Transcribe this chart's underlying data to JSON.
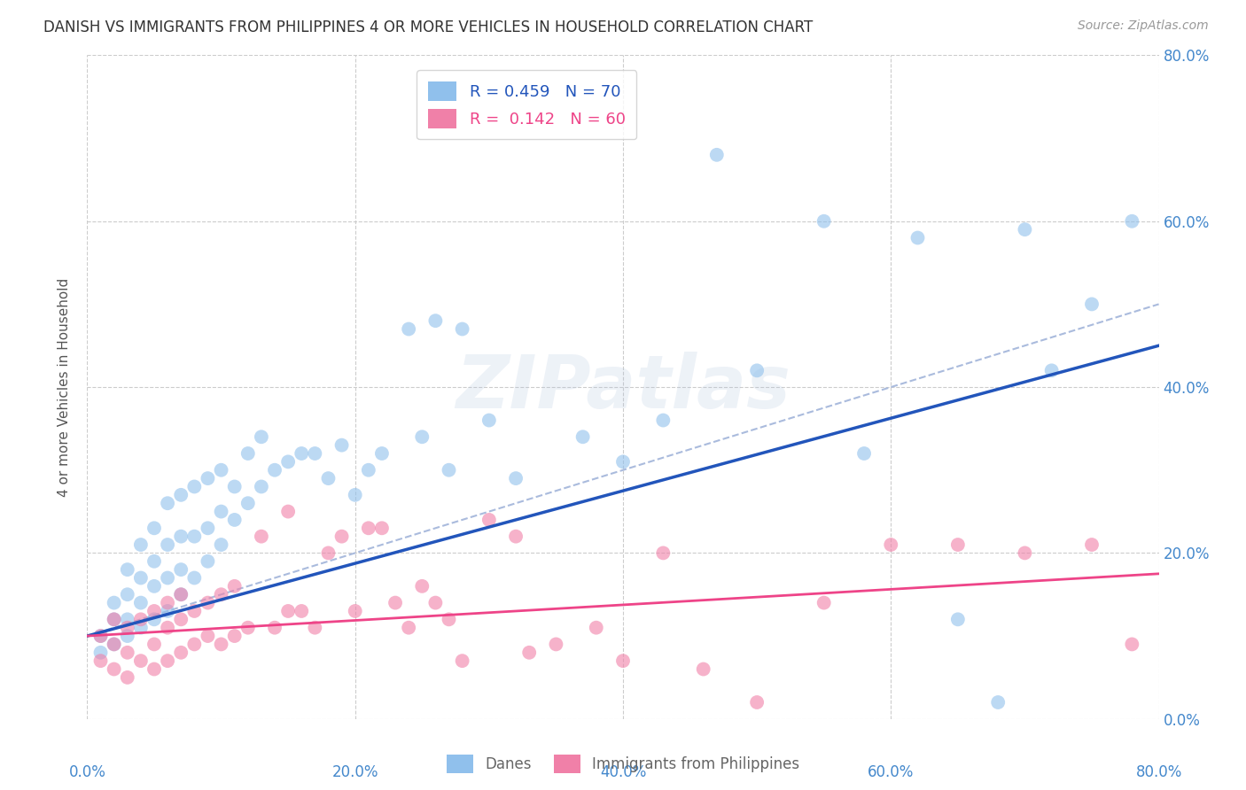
{
  "title": "DANISH VS IMMIGRANTS FROM PHILIPPINES 4 OR MORE VEHICLES IN HOUSEHOLD CORRELATION CHART",
  "source": "Source: ZipAtlas.com",
  "ylabel": "4 or more Vehicles in Household",
  "xlim": [
    0.0,
    0.8
  ],
  "ylim": [
    0.0,
    0.8
  ],
  "x_ticks": [
    0.0,
    0.2,
    0.4,
    0.6,
    0.8
  ],
  "y_ticks": [
    0.0,
    0.2,
    0.4,
    0.6,
    0.8
  ],
  "right_y_tick_labels": [
    "0.0%",
    "20.0%",
    "40.0%",
    "60.0%",
    "80.0%"
  ],
  "danes_color": "#90C0EC",
  "philippines_color": "#F080A8",
  "danes_line_color": "#2255BB",
  "philippines_line_color": "#EE4488",
  "dashed_line_color": "#AABBDD",
  "watermark": "ZIPatlas",
  "background_color": "#FFFFFF",
  "title_fontsize": 12,
  "tick_label_color": "#4488CC",
  "grid_color": "#CCCCCC",
  "danes_scatter_x": [
    0.01,
    0.01,
    0.02,
    0.02,
    0.02,
    0.03,
    0.03,
    0.03,
    0.03,
    0.04,
    0.04,
    0.04,
    0.04,
    0.05,
    0.05,
    0.05,
    0.05,
    0.06,
    0.06,
    0.06,
    0.06,
    0.07,
    0.07,
    0.07,
    0.07,
    0.08,
    0.08,
    0.08,
    0.09,
    0.09,
    0.09,
    0.1,
    0.1,
    0.1,
    0.11,
    0.11,
    0.12,
    0.12,
    0.13,
    0.13,
    0.14,
    0.15,
    0.16,
    0.17,
    0.18,
    0.19,
    0.2,
    0.21,
    0.22,
    0.24,
    0.25,
    0.26,
    0.27,
    0.28,
    0.3,
    0.32,
    0.37,
    0.4,
    0.43,
    0.47,
    0.5,
    0.55,
    0.58,
    0.62,
    0.65,
    0.68,
    0.7,
    0.72,
    0.75,
    0.78
  ],
  "danes_scatter_y": [
    0.08,
    0.1,
    0.09,
    0.12,
    0.14,
    0.1,
    0.12,
    0.15,
    0.18,
    0.11,
    0.14,
    0.17,
    0.21,
    0.12,
    0.16,
    0.19,
    0.23,
    0.13,
    0.17,
    0.21,
    0.26,
    0.15,
    0.18,
    0.22,
    0.27,
    0.17,
    0.22,
    0.28,
    0.19,
    0.23,
    0.29,
    0.21,
    0.25,
    0.3,
    0.24,
    0.28,
    0.26,
    0.32,
    0.28,
    0.34,
    0.3,
    0.31,
    0.32,
    0.32,
    0.29,
    0.33,
    0.27,
    0.3,
    0.32,
    0.47,
    0.34,
    0.48,
    0.3,
    0.47,
    0.36,
    0.29,
    0.34,
    0.31,
    0.36,
    0.68,
    0.42,
    0.6,
    0.32,
    0.58,
    0.12,
    0.02,
    0.59,
    0.42,
    0.5,
    0.6
  ],
  "philippines_scatter_x": [
    0.01,
    0.01,
    0.02,
    0.02,
    0.02,
    0.03,
    0.03,
    0.03,
    0.04,
    0.04,
    0.05,
    0.05,
    0.05,
    0.06,
    0.06,
    0.06,
    0.07,
    0.07,
    0.07,
    0.08,
    0.08,
    0.09,
    0.09,
    0.1,
    0.1,
    0.11,
    0.11,
    0.12,
    0.13,
    0.14,
    0.15,
    0.15,
    0.16,
    0.17,
    0.18,
    0.19,
    0.2,
    0.21,
    0.22,
    0.23,
    0.24,
    0.25,
    0.26,
    0.27,
    0.28,
    0.3,
    0.32,
    0.33,
    0.35,
    0.38,
    0.4,
    0.43,
    0.46,
    0.5,
    0.55,
    0.6,
    0.65,
    0.7,
    0.75,
    0.78
  ],
  "philippines_scatter_y": [
    0.07,
    0.1,
    0.06,
    0.09,
    0.12,
    0.05,
    0.08,
    0.11,
    0.07,
    0.12,
    0.06,
    0.09,
    0.13,
    0.07,
    0.11,
    0.14,
    0.08,
    0.12,
    0.15,
    0.09,
    0.13,
    0.1,
    0.14,
    0.09,
    0.15,
    0.1,
    0.16,
    0.11,
    0.22,
    0.11,
    0.13,
    0.25,
    0.13,
    0.11,
    0.2,
    0.22,
    0.13,
    0.23,
    0.23,
    0.14,
    0.11,
    0.16,
    0.14,
    0.12,
    0.07,
    0.24,
    0.22,
    0.08,
    0.09,
    0.11,
    0.07,
    0.2,
    0.06,
    0.02,
    0.14,
    0.21,
    0.21,
    0.2,
    0.21,
    0.09
  ],
  "danes_line_x0": 0.0,
  "danes_line_y0": 0.1,
  "danes_line_x1": 0.8,
  "danes_line_y1": 0.45,
  "phil_line_x0": 0.0,
  "phil_line_y0": 0.1,
  "phil_line_x1": 0.8,
  "phil_line_y1": 0.175,
  "dash_line_x0": 0.0,
  "dash_line_y0": 0.1,
  "dash_line_x1": 0.8,
  "dash_line_y1": 0.5
}
